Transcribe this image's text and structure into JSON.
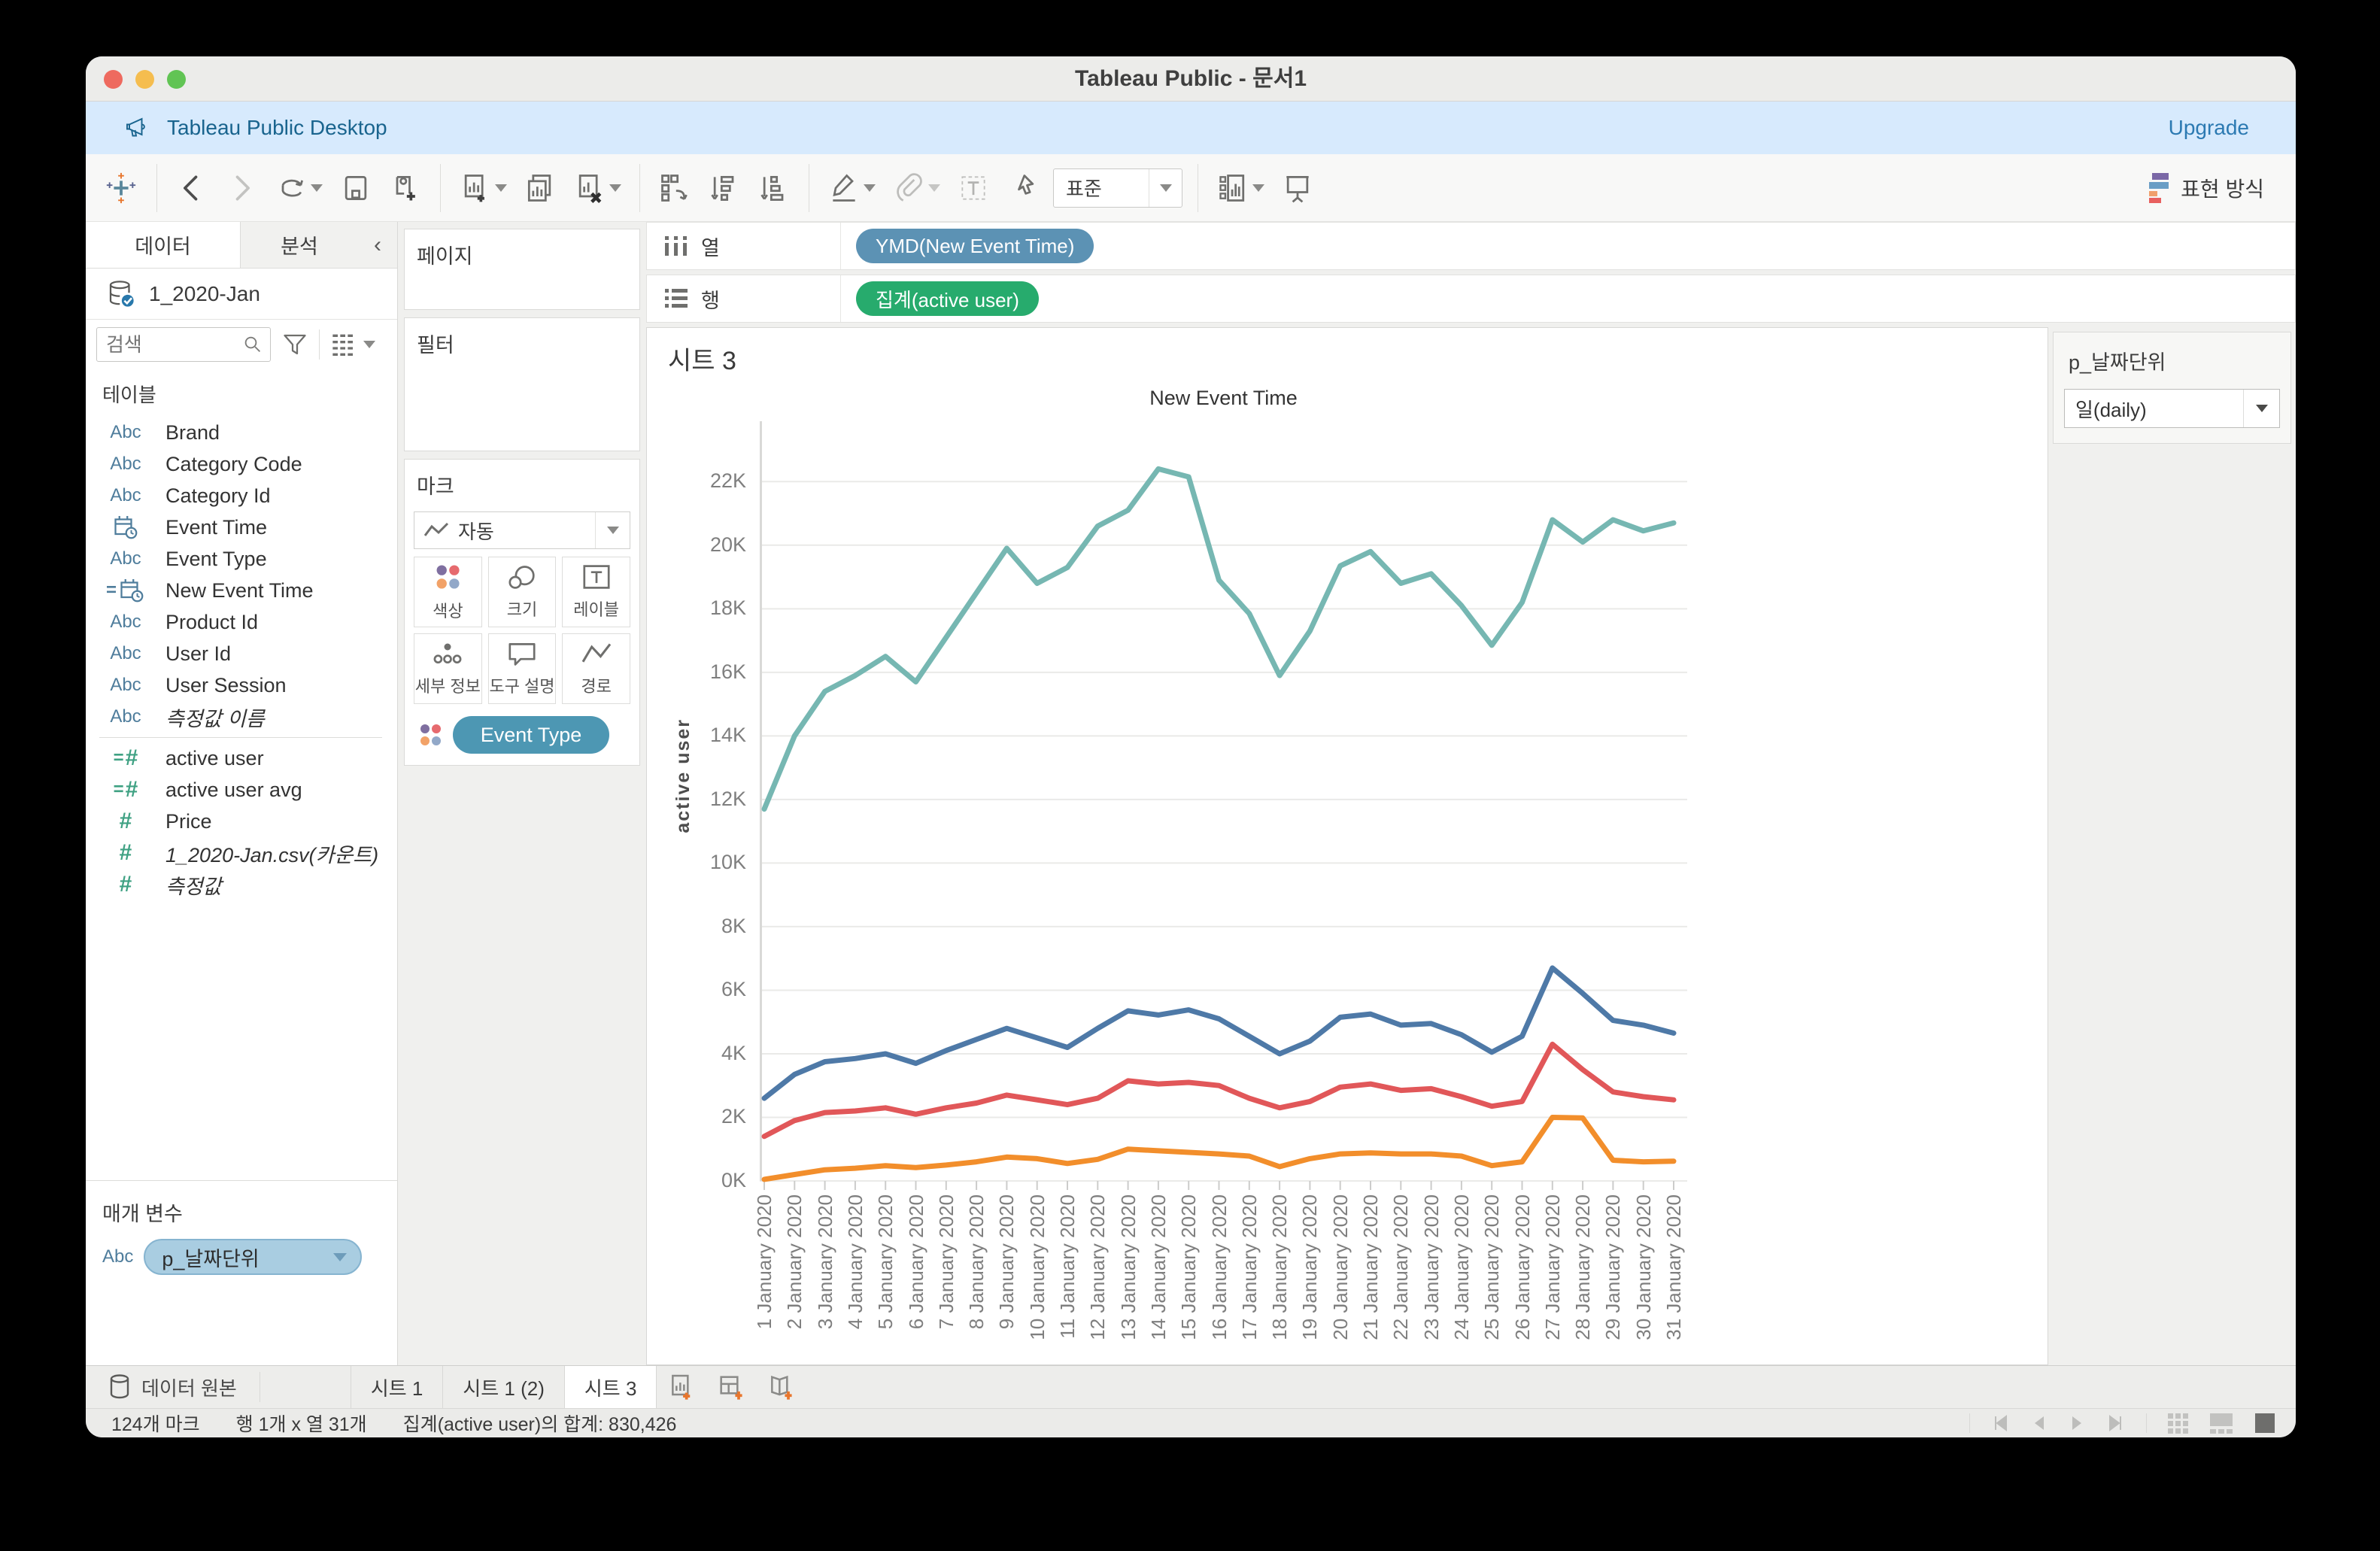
{
  "window": {
    "title": "Tableau Public - 문서1"
  },
  "banner": {
    "brand": "Tableau Public Desktop",
    "upgrade": "Upgrade"
  },
  "toolbar": {
    "fit_value": "표준",
    "showme_label": "표현 방식"
  },
  "sidebar": {
    "tab_data": "데이터",
    "tab_analytics": "분석",
    "datasource": "1_2020-Jan",
    "search_placeholder": "검색",
    "tables_label": "테이블",
    "fields": [
      {
        "icon": "abc",
        "label": "Brand"
      },
      {
        "icon": "abc",
        "label": "Category Code"
      },
      {
        "icon": "abc",
        "label": "Category Id"
      },
      {
        "icon": "cal",
        "label": "Event Time"
      },
      {
        "icon": "abc",
        "label": "Event Type"
      },
      {
        "icon": "cal-calc",
        "label": "New Event Time"
      },
      {
        "icon": "abc",
        "label": "Product Id"
      },
      {
        "icon": "abc",
        "label": "User Id"
      },
      {
        "icon": "abc",
        "label": "User Session"
      },
      {
        "icon": "abc",
        "label": "측정값 이름",
        "italic": true,
        "divider_after": true
      },
      {
        "icon": "hash-calc",
        "label": "active user"
      },
      {
        "icon": "hash-calc",
        "label": "active user avg"
      },
      {
        "icon": "hash",
        "label": "Price"
      },
      {
        "icon": "hash",
        "label": "1_2020-Jan.csv(카운트)",
        "italic": true
      },
      {
        "icon": "hash",
        "label": "측정값",
        "italic": true
      }
    ],
    "parameters_label": "매개 변수",
    "parameter_pill": "p_날짜단위"
  },
  "cards": {
    "pages": "페이지",
    "filters": "필터",
    "marks": "마크",
    "mark_type": "자동",
    "mark_buttons": [
      {
        "icon": "color",
        "label": "색상"
      },
      {
        "icon": "size",
        "label": "크기"
      },
      {
        "icon": "label",
        "label": "레이블"
      },
      {
        "icon": "detail",
        "label": "세부 정보"
      },
      {
        "icon": "tooltip",
        "label": "도구 설명"
      },
      {
        "icon": "path",
        "label": "경로"
      }
    ],
    "color_legend_pill": "Event Type"
  },
  "shelves": {
    "columns_label": "열",
    "rows_label": "행",
    "columns_pill": "YMD(New Event Time)",
    "rows_pill": "집계(active user)",
    "columns_pill_color": "#5c92b4",
    "rows_pill_color": "#27ab6d"
  },
  "sheet": {
    "title": "시트 3"
  },
  "param_control": {
    "title": "p_날짜단위",
    "value": "일(daily)"
  },
  "tabs": {
    "datasource": "데이터 원본",
    "sheets": [
      "시트 1",
      "시트 1 (2)",
      "시트 3"
    ],
    "active": "시트 3"
  },
  "statusbar": {
    "marks": "124개 마크",
    "dims": "행 1개 x 열 31개",
    "agg": "집계(active user)의 합계: 830,426"
  },
  "chart_data": {
    "type": "line",
    "title": "New Event Time",
    "xlabel": "",
    "ylabel": "active user",
    "ylim": [
      0,
      23900
    ],
    "ytick_step": 2000,
    "ytick_labels": [
      "0K",
      "2K",
      "4K",
      "6K",
      "8K",
      "10K",
      "12K",
      "14K",
      "16K",
      "18K",
      "20K",
      "22K"
    ],
    "grid": true,
    "legend": "none (colored by Event Type)",
    "categories": [
      "1 January 2020",
      "2 January 2020",
      "3 January 2020",
      "4 January 2020",
      "5 January 2020",
      "6 January 2020",
      "7 January 2020",
      "8 January 2020",
      "9 January 2020",
      "10 January 2020",
      "11 January 2020",
      "12 January 2020",
      "13 January 2020",
      "14 January 2020",
      "15 January 2020",
      "16 January 2020",
      "17 January 2020",
      "18 January 2020",
      "19 January 2020",
      "20 January 2020",
      "21 January 2020",
      "22 January 2020",
      "23 January 2020",
      "24 January 2020",
      "25 January 2020",
      "26 January 2020",
      "27 January 2020",
      "28 January 2020",
      "29 January 2020",
      "30 January 2020",
      "31 January 2020"
    ],
    "series": [
      {
        "name": "series-teal",
        "color": "#76b7b2",
        "values": [
          11700,
          14000,
          15400,
          15900,
          16500,
          15700,
          17100,
          18500,
          19900,
          18800,
          19300,
          20600,
          21100,
          22400,
          22150,
          18900,
          17850,
          15900,
          17300,
          19350,
          19800,
          18800,
          19100,
          18100,
          16850,
          18200,
          20800,
          20100,
          20800,
          20450,
          20700
        ]
      },
      {
        "name": "series-blue",
        "color": "#4e79a7",
        "values": [
          2600,
          3350,
          3750,
          3850,
          4000,
          3700,
          4100,
          4450,
          4800,
          4500,
          4200,
          4800,
          5350,
          5220,
          5380,
          5100,
          4550,
          4000,
          4400,
          5150,
          5250,
          4900,
          4950,
          4600,
          4050,
          4550,
          6700,
          5900,
          5050,
          4900,
          4650
        ]
      },
      {
        "name": "series-red",
        "color": "#e15759",
        "values": [
          1400,
          1900,
          2150,
          2200,
          2300,
          2100,
          2300,
          2450,
          2700,
          2550,
          2400,
          2600,
          3150,
          3050,
          3100,
          3000,
          2600,
          2300,
          2500,
          2950,
          3050,
          2850,
          2900,
          2650,
          2350,
          2500,
          4300,
          3500,
          2800,
          2650,
          2550
        ]
      },
      {
        "name": "series-orange",
        "color": "#f28e2b",
        "values": [
          50,
          200,
          350,
          400,
          480,
          420,
          500,
          600,
          750,
          700,
          550,
          680,
          1000,
          950,
          900,
          850,
          780,
          450,
          700,
          850,
          880,
          850,
          850,
          780,
          480,
          600,
          2000,
          1980,
          650,
          600,
          620
        ]
      }
    ]
  }
}
